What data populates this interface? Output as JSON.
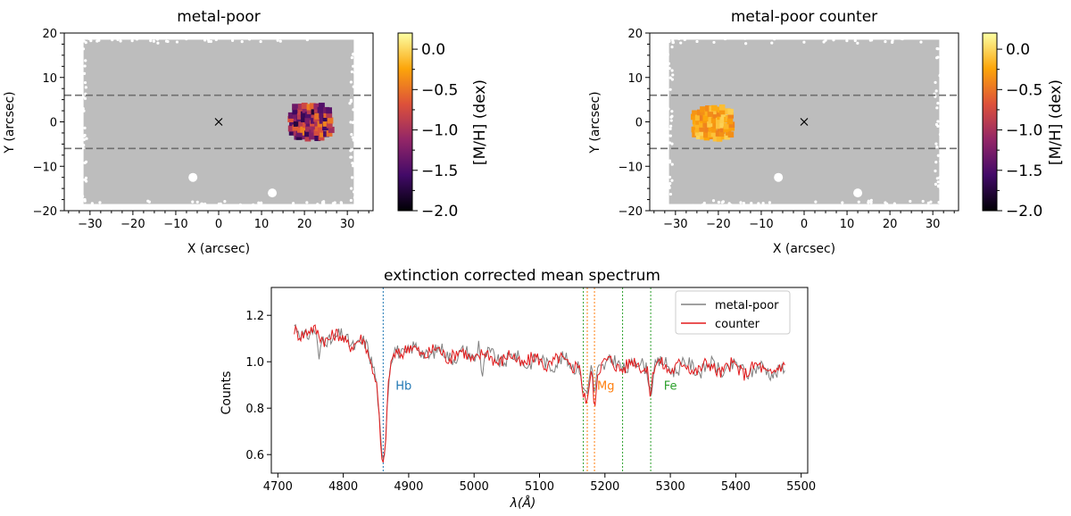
{
  "chart_data": [
    {
      "type": "scatter",
      "id": "map-left",
      "title": "metal-poor",
      "xlabel": "X (arcsec)",
      "ylabel": "Y (arcsec)",
      "xlim": [
        -36,
        36
      ],
      "ylim": [
        -20,
        20
      ],
      "xticks": [
        "-30",
        "-20",
        "-10",
        "0",
        "10",
        "20",
        "30"
      ],
      "xtick_values": [
        -30,
        -20,
        -10,
        0,
        10,
        20,
        30
      ],
      "yticks": [
        "20",
        "10",
        "0",
        "-10",
        "-20"
      ],
      "ytick_values": [
        20,
        10,
        0,
        -10,
        -20
      ],
      "footprint": {
        "x": [
          -31.5,
          31.5
        ],
        "y": [
          -18.5,
          18.5
        ],
        "color": "#bdbdbd"
      },
      "dashed_lines_y": [
        6,
        -6
      ],
      "center_marker": {
        "x": 0,
        "y": 0,
        "symbol": "x"
      },
      "holes": [
        {
          "x": -6,
          "y": -12.5
        },
        {
          "x": 12.5,
          "y": -16
        }
      ],
      "region": {
        "x_range": [
          16.5,
          26.5
        ],
        "y_range": [
          -4,
          4
        ],
        "mh_range": [
          -1.8,
          -0.4
        ]
      },
      "colorbar": {
        "label": "[M/H] (dex)",
        "range": [
          -2.0,
          0.2
        ],
        "ticks": [
          "0.0",
          "-0.5",
          "-1.0",
          "-1.5",
          "-2.0"
        ],
        "tick_values": [
          0.0,
          -0.5,
          -1.0,
          -1.5,
          -2.0
        ],
        "colormap": "inferno"
      }
    },
    {
      "type": "scatter",
      "id": "map-right",
      "title": "metal-poor counter",
      "xlabel": "X (arcsec)",
      "ylabel": "Y (arcsec)",
      "xlim": [
        -36,
        36
      ],
      "ylim": [
        -20,
        20
      ],
      "xticks": [
        "-30",
        "-20",
        "-10",
        "0",
        "10",
        "20",
        "30"
      ],
      "xtick_values": [
        -30,
        -20,
        -10,
        0,
        10,
        20,
        30
      ],
      "yticks": [
        "20",
        "10",
        "0",
        "-10",
        "-20"
      ],
      "ytick_values": [
        20,
        10,
        0,
        -10,
        -20
      ],
      "footprint": {
        "x": [
          -31.5,
          31.5
        ],
        "y": [
          -18.5,
          18.5
        ],
        "color": "#bdbdbd"
      },
      "dashed_lines_y": [
        6,
        -6
      ],
      "center_marker": {
        "x": 0,
        "y": 0,
        "symbol": "x"
      },
      "holes": [
        {
          "x": -6,
          "y": -12.5
        },
        {
          "x": 12.5,
          "y": -16
        }
      ],
      "region": {
        "x_range": [
          -26,
          -16.5
        ],
        "y_range": [
          -4,
          3.5
        ],
        "mh_range": [
          -0.45,
          0.0
        ]
      },
      "colorbar": {
        "label": "[M/H] (dex)",
        "range": [
          -2.0,
          0.2
        ],
        "ticks": [
          "0.0",
          "-0.5",
          "-1.0",
          "-1.5",
          "-2.0"
        ],
        "tick_values": [
          0.0,
          -0.5,
          -1.0,
          -1.5,
          -2.0
        ],
        "colormap": "inferno"
      }
    },
    {
      "type": "line",
      "id": "spectrum",
      "title": "extinction corrected mean spectrum",
      "xlabel": "λ(Å)",
      "ylabel": "Counts",
      "xlim": [
        4690,
        5510
      ],
      "ylim": [
        0.52,
        1.32
      ],
      "xticks": [
        "4700",
        "4800",
        "4900",
        "5000",
        "5100",
        "5200",
        "5300",
        "5400",
        "5500"
      ],
      "xtick_values": [
        4700,
        4800,
        4900,
        5000,
        5100,
        5200,
        5300,
        5400,
        5500
      ],
      "yticks": [
        "1.2",
        "1.0",
        "0.8",
        "0.6"
      ],
      "ytick_values": [
        1.2,
        1.0,
        0.8,
        0.6
      ],
      "legend": {
        "location": "top-right",
        "entries": [
          {
            "label": "metal-poor",
            "color": "#808080"
          },
          {
            "label": "counter",
            "color": "#e31a1c"
          }
        ]
      },
      "series": [
        {
          "name": "metal-poor",
          "color": "#808080",
          "x_range": [
            4725,
            5475
          ],
          "features": [
            [
              4763,
              -0.12
            ],
            [
              4861,
              -0.36
            ],
            [
              5008,
              0.1
            ],
            [
              5012,
              -0.1
            ],
            [
              5167,
              -0.12
            ],
            [
              5173,
              -0.14
            ],
            [
              5184,
              -0.12
            ],
            [
              5270,
              -0.09
            ]
          ]
        },
        {
          "name": "counter",
          "color": "#e31a1c",
          "x_range": [
            4725,
            5475
          ],
          "features": [
            [
              4861,
              -0.4
            ],
            [
              5167,
              -0.16
            ],
            [
              5173,
              -0.18
            ],
            [
              5184,
              -0.15
            ],
            [
              5270,
              -0.11
            ]
          ]
        }
      ],
      "vlines": [
        {
          "x": 4861,
          "color": "#1f77b4"
        },
        {
          "x": 5167,
          "color": "#2ca02c"
        },
        {
          "x": 5173,
          "color": "#ff7f0e"
        },
        {
          "x": 5184,
          "color": "#ff7f0e"
        },
        {
          "x": 5227,
          "color": "#2ca02c"
        },
        {
          "x": 5270,
          "color": "#2ca02c"
        }
      ],
      "line_labels": [
        {
          "text": "Hb",
          "x": 4880,
          "y": 0.88,
          "color": "#1f77b4"
        },
        {
          "text": "Mg",
          "x": 5188,
          "y": 0.88,
          "color": "#ff7f0e"
        },
        {
          "text": "Fe",
          "x": 5290,
          "y": 0.88,
          "color": "#2ca02c"
        }
      ]
    }
  ]
}
